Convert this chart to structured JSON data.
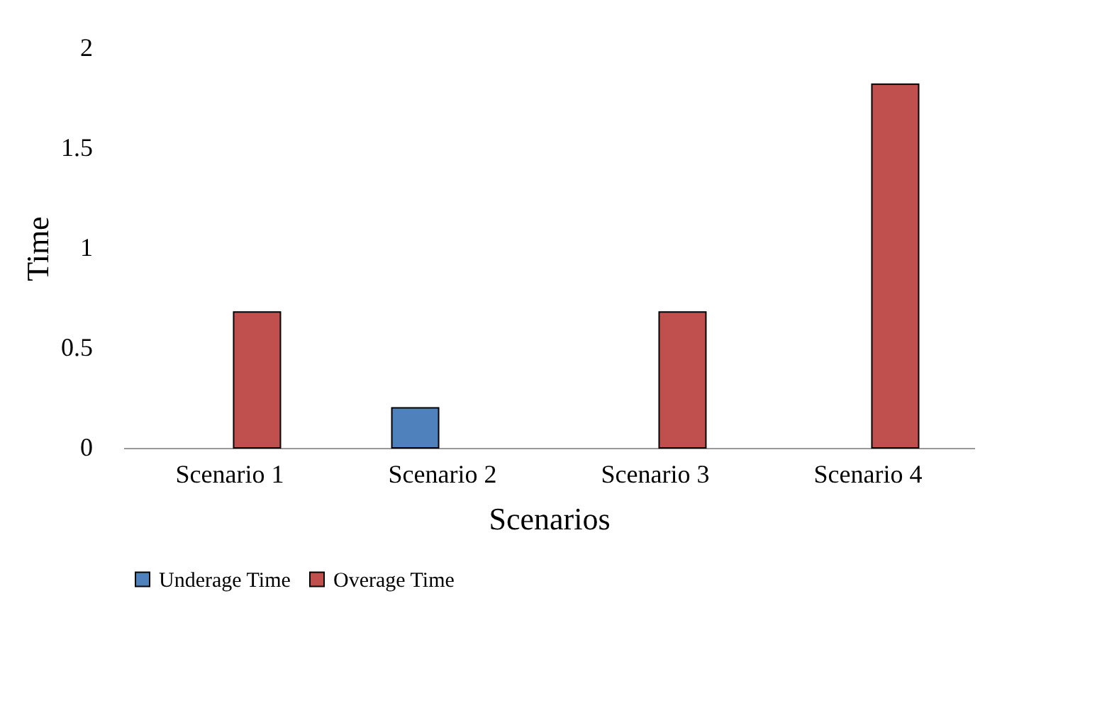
{
  "chart_data": {
    "type": "bar",
    "xlabel": "Scenarios",
    "ylabel": "Time",
    "categories": [
      "Scenario 1",
      "Scenario 2",
      "Scenario 3",
      "Scenario 4"
    ],
    "series": [
      {
        "name": "Underage Time",
        "color": "#4f81bd",
        "values": [
          null,
          0.2,
          null,
          null
        ]
      },
      {
        "name": "Overage Time",
        "color": "#c0504d",
        "values": [
          0.68,
          null,
          0.68,
          1.82
        ]
      }
    ],
    "ylim": [
      0,
      2
    ],
    "yticks": [
      0,
      0.5,
      1,
      1.5,
      2
    ],
    "grid": false,
    "legend": "bottom"
  }
}
